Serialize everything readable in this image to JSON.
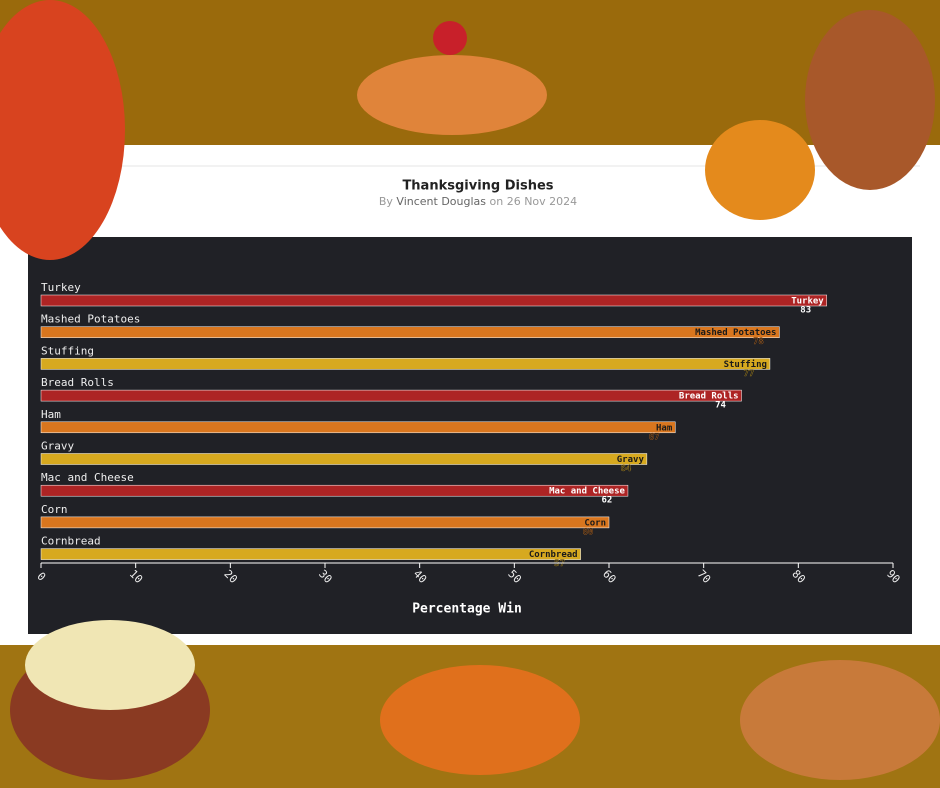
{
  "header": {
    "title": "Thanksgiving Dishes",
    "by": "By",
    "author": "Vincent Douglas",
    "on": "on 26 Nov 2024"
  },
  "chart_data": {
    "type": "barh",
    "categories": [
      "Turkey",
      "Mashed Potatoes",
      "Stuffing",
      "Bread Rolls",
      "Ham",
      "Gravy",
      "Mac and Cheese",
      "Corn",
      "Cornbread"
    ],
    "values": [
      83,
      78,
      77,
      74,
      67,
      64,
      62,
      60,
      57
    ],
    "colors": [
      "#ad2424",
      "#d9761e",
      "#d7a91f",
      "#ad2424",
      "#d9761e",
      "#d7a91f",
      "#ad2424",
      "#d9761e",
      "#d7a91f"
    ],
    "xlabel": "Percentage Win",
    "xlim": [
      0,
      90
    ],
    "xticks": [
      0,
      10,
      20,
      30,
      40,
      50,
      60,
      70,
      80,
      90
    ]
  }
}
